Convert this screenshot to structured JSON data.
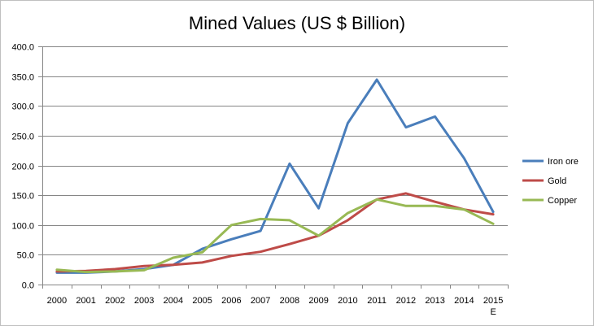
{
  "chart_data": {
    "type": "line",
    "title": "Mined Values (US $ Billion)",
    "xlabel": "",
    "ylabel": "",
    "categories": [
      "2000",
      "2001",
      "2002",
      "2003",
      "2004",
      "2005",
      "2006",
      "2007",
      "2008",
      "2009",
      "2010",
      "2011",
      "2012",
      "2013",
      "2014",
      "2015\nE"
    ],
    "y_ticks": [
      "0.0",
      "50.0",
      "100.0",
      "150.0",
      "200.0",
      "250.0",
      "300.0",
      "350.0",
      "400.0"
    ],
    "ylim": [
      0,
      400
    ],
    "grid": true,
    "legend_position": "right",
    "series": [
      {
        "name": "Iron ore",
        "color": "#4a7ebb",
        "values": [
          20,
          20,
          22,
          26,
          33,
          60,
          76,
          90,
          203,
          128,
          271,
          344,
          264,
          282,
          212,
          122
        ]
      },
      {
        "name": "Gold",
        "color": "#be4b48",
        "values": [
          22,
          23,
          26,
          31,
          33,
          37,
          48,
          55,
          68,
          82,
          108,
          143,
          153,
          139,
          126,
          118
        ]
      },
      {
        "name": "Copper",
        "color": "#98b954",
        "values": [
          25,
          21,
          22,
          24,
          45,
          54,
          100,
          110,
          108,
          82,
          120,
          143,
          132,
          132,
          126,
          102
        ]
      }
    ]
  }
}
